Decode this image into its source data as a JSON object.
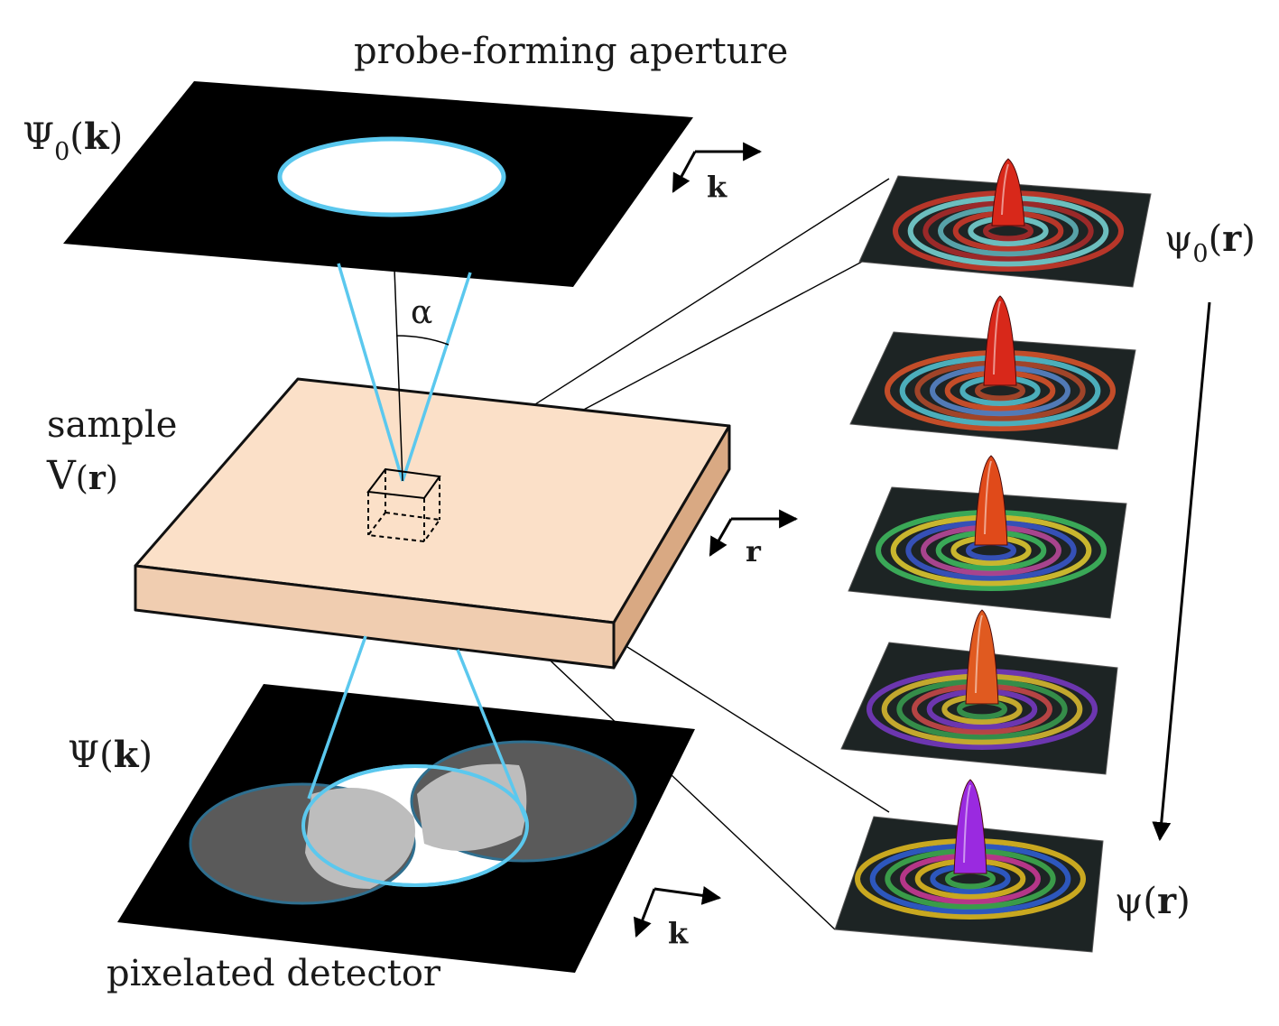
{
  "labels": {
    "aperture_title": "probe-forming aperture",
    "psi0_k": {
      "symbol": "Ψ",
      "sub": "0",
      "open": "(",
      "var": "k",
      "close": ")"
    },
    "sample": "sample",
    "v_r": {
      "symbol": "V",
      "open": "(",
      "var": "r",
      "close": ")"
    },
    "psi_k": {
      "symbol": "Ψ",
      "open": "(",
      "var": "k",
      "close": ")"
    },
    "detector": "pixelated detector",
    "alpha": "α",
    "axis_k_top": "k",
    "axis_r": "r",
    "axis_k_bottom": "k",
    "psi0_r": {
      "symbol": "ψ",
      "sub": "0",
      "open": "(",
      "var": "r",
      "close": ")"
    },
    "psi_r": {
      "symbol": "ψ",
      "open": "(",
      "var": "r",
      "close": ")"
    }
  },
  "colors": {
    "plane": "#000000",
    "aperture_ring": "#5bc8ee",
    "cone": "#5bc8ee",
    "sample_top": "#fbe0c8",
    "sample_front": "#f0cdb0",
    "sample_side": "#d9a983",
    "disc_dark": "#5a5a5a",
    "disc_overlap": "#bdbdbd",
    "disc_edge": "#2f6f8f"
  },
  "wavefunction_panels": [
    {
      "stage": 1,
      "peak_color": "#d8281a",
      "ring_colors": [
        "#d23a2a",
        "#7ad9d9",
        "#b02a2a",
        "#62b9bf"
      ]
    },
    {
      "stage": 2,
      "peak_color": "#d8281a",
      "ring_colors": [
        "#e0552a",
        "#55c7d6",
        "#b74a2a",
        "#5a8ad0"
      ]
    },
    {
      "stage": 3,
      "peak_color": "#e04a1a",
      "ring_colors": [
        "#3fc060",
        "#e8d030",
        "#3a58d0",
        "#c04aa0"
      ]
    },
    {
      "stage": 4,
      "peak_color": "#e05a20",
      "ring_colors": [
        "#7a3ac8",
        "#e0c030",
        "#3aa050",
        "#d04a4a"
      ]
    },
    {
      "stage": 5,
      "peak_color": "#9a2ae0",
      "ring_colors": [
        "#e8c020",
        "#3060d8",
        "#40b050",
        "#d03a9a"
      ]
    }
  ]
}
